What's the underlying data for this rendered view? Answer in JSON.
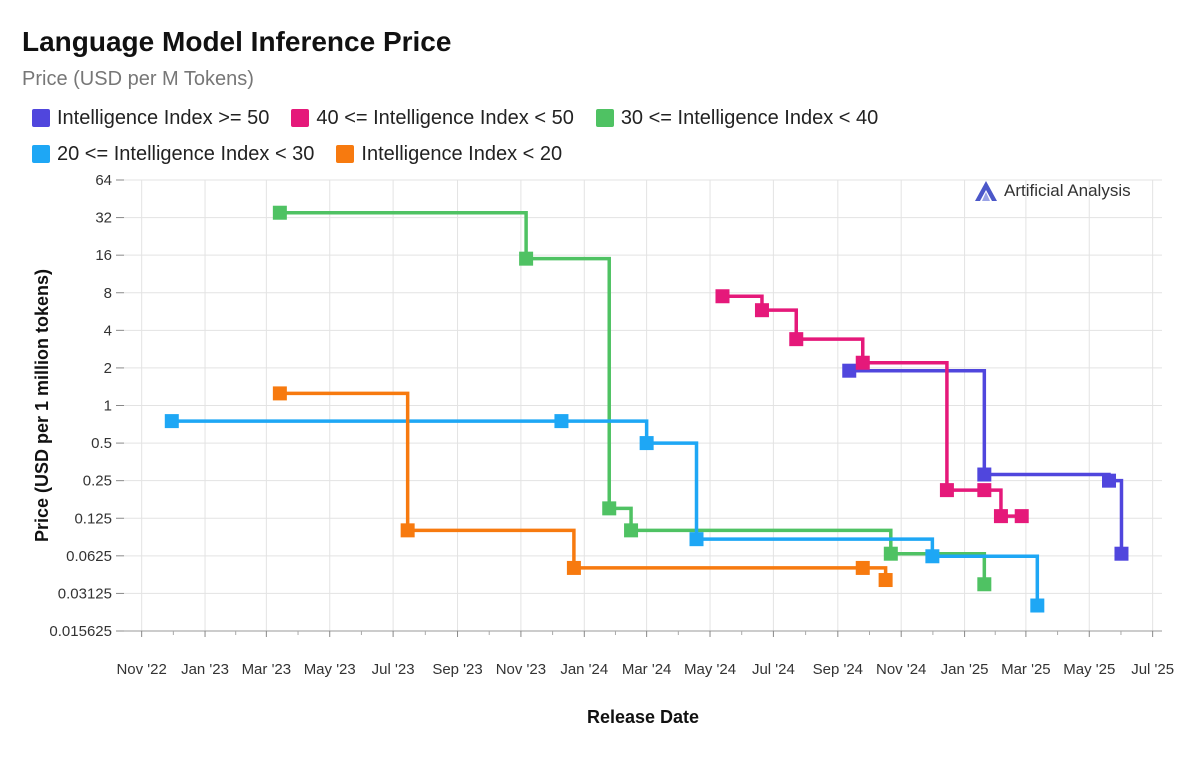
{
  "title": "Language Model Inference Price",
  "subtitle": "Price (USD per M Tokens)",
  "brand": "Artificial Analysis",
  "chart_data": {
    "type": "line",
    "step": true,
    "xlabel": "Release Date",
    "ylabel": "Price (USD per 1 million tokens)",
    "yscale": "log2",
    "ylim": [
      0.015625,
      64
    ],
    "xlim": [
      "2022-10-15",
      "2025-07-10"
    ],
    "yticks": [
      64,
      32,
      16,
      8,
      4,
      2,
      1,
      0.5,
      0.25,
      0.125,
      0.0625,
      0.03125,
      0.015625
    ],
    "ytick_labels": [
      "64",
      "32",
      "16",
      "8",
      "4",
      "2",
      "1",
      "0.5",
      "0.25",
      "0.125",
      "0.0625",
      "0.03125",
      "0.015625"
    ],
    "xticks": [
      "2022-11-01",
      "2023-01-01",
      "2023-03-01",
      "2023-05-01",
      "2023-07-01",
      "2023-09-01",
      "2023-11-01",
      "2024-01-01",
      "2024-03-01",
      "2024-05-01",
      "2024-07-01",
      "2024-09-01",
      "2024-11-01",
      "2025-01-01",
      "2025-03-01",
      "2025-05-01",
      "2025-07-01"
    ],
    "xtick_labels": [
      "Nov '22",
      "Jan '23",
      "Mar '23",
      "May '23",
      "Jul '23",
      "Sep '23",
      "Nov '23",
      "Jan '24",
      "Mar '24",
      "May '24",
      "Jul '24",
      "Sep '24",
      "Nov '24",
      "Jan '25",
      "Mar '25",
      "May '25",
      "Jul '25"
    ],
    "grid": true,
    "legend": "top",
    "series": [
      {
        "name": "Intelligence Index >= 50",
        "color": "#5046dd",
        "points": [
          {
            "x": "2024-09-12",
            "y": 1.9
          },
          {
            "x": "2025-01-20",
            "y": 0.28
          },
          {
            "x": "2025-05-20",
            "y": 0.25
          },
          {
            "x": "2025-06-01",
            "y": 0.065
          }
        ]
      },
      {
        "name": "40 <= Intelligence Index < 50",
        "color": "#e5197a",
        "points": [
          {
            "x": "2024-05-13",
            "y": 7.5
          },
          {
            "x": "2024-06-20",
            "y": 5.8
          },
          {
            "x": "2024-07-23",
            "y": 3.4
          },
          {
            "x": "2024-09-25",
            "y": 2.2
          },
          {
            "x": "2024-12-15",
            "y": 0.21
          },
          {
            "x": "2025-01-20",
            "y": 0.21
          },
          {
            "x": "2025-02-05",
            "y": 0.13
          },
          {
            "x": "2025-02-25",
            "y": 0.13
          }
        ]
      },
      {
        "name": "30 <= Intelligence Index < 40",
        "color": "#4fc263",
        "points": [
          {
            "x": "2023-03-14",
            "y": 35
          },
          {
            "x": "2023-11-06",
            "y": 15
          },
          {
            "x": "2024-01-25",
            "y": 0.15
          },
          {
            "x": "2024-02-15",
            "y": 0.1
          },
          {
            "x": "2024-10-22",
            "y": 0.065
          },
          {
            "x": "2025-01-20",
            "y": 0.037
          }
        ]
      },
      {
        "name": "20 <= Intelligence Index < 30",
        "color": "#1ea7f5",
        "points": [
          {
            "x": "2022-11-30",
            "y": 0.75
          },
          {
            "x": "2023-12-10",
            "y": 0.75
          },
          {
            "x": "2024-03-01",
            "y": 0.5
          },
          {
            "x": "2024-04-18",
            "y": 0.085
          },
          {
            "x": "2024-12-01",
            "y": 0.062
          },
          {
            "x": "2025-03-12",
            "y": 0.025
          }
        ]
      },
      {
        "name": "Intelligence Index < 20",
        "color": "#f77a0f",
        "points": [
          {
            "x": "2023-03-14",
            "y": 1.25
          },
          {
            "x": "2023-07-15",
            "y": 0.1
          },
          {
            "x": "2023-12-22",
            "y": 0.05
          },
          {
            "x": "2024-09-25",
            "y": 0.05
          },
          {
            "x": "2024-10-17",
            "y": 0.04
          }
        ]
      }
    ]
  }
}
